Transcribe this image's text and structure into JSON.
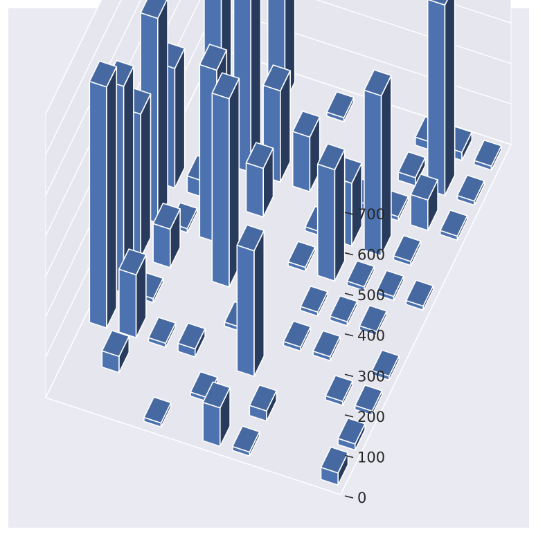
{
  "chart_data": {
    "type": "bar3d",
    "title": "",
    "xlabel": "",
    "ylabel": "",
    "zlabel": "",
    "zlim": [
      0,
      700
    ],
    "z_ticks": [
      "0",
      "100",
      "200",
      "300",
      "400",
      "500",
      "600",
      "700"
    ],
    "grid": true,
    "grid_size": [
      10,
      10
    ],
    "colors": {
      "bar": "#4c72b0",
      "figure_bg": "#ffffff",
      "axes_bg": "#eaeaf2",
      "pane": "#e6e6ee",
      "grid": "#ffffff",
      "tick_text": "#262626"
    },
    "bars": [
      {
        "x": 0,
        "y": 2,
        "z": 595
      },
      {
        "x": 0,
        "y": 3,
        "z": 510
      },
      {
        "x": 0,
        "y": 4,
        "z": 355
      },
      {
        "x": 0,
        "y": 5,
        "z": 505
      },
      {
        "x": 0,
        "y": 6,
        "z": 295
      },
      {
        "x": 1,
        "y": 1,
        "z": 40
      },
      {
        "x": 1,
        "y": 2,
        "z": 155
      },
      {
        "x": 1,
        "y": 3,
        "z": 10
      },
      {
        "x": 1,
        "y": 4,
        "z": 95
      },
      {
        "x": 1,
        "y": 5,
        "z": 10
      },
      {
        "x": 1,
        "y": 6,
        "z": 40
      },
      {
        "x": 1,
        "y": 7,
        "z": 620
      },
      {
        "x": 2,
        "y": 2,
        "z": 10
      },
      {
        "x": 2,
        "y": 5,
        "z": 425
      },
      {
        "x": 2,
        "y": 7,
        "z": 580
      },
      {
        "x": 2,
        "y": 9,
        "z": 645
      },
      {
        "x": 3,
        "y": 0,
        "z": 10
      },
      {
        "x": 3,
        "y": 2,
        "z": 20
      },
      {
        "x": 3,
        "y": 4,
        "z": 465
      },
      {
        "x": 3,
        "y": 6,
        "z": 120
      },
      {
        "x": 3,
        "y": 7,
        "z": 225
      },
      {
        "x": 4,
        "y": 1,
        "z": 10
      },
      {
        "x": 4,
        "y": 3,
        "z": 10
      },
      {
        "x": 4,
        "y": 7,
        "z": 135
      },
      {
        "x": 4,
        "y": 9,
        "z": 10
      },
      {
        "x": 5,
        "y": 0,
        "z": 95
      },
      {
        "x": 5,
        "y": 2,
        "z": 310
      },
      {
        "x": 5,
        "y": 5,
        "z": 10
      },
      {
        "x": 5,
        "y": 6,
        "z": 10
      },
      {
        "x": 5,
        "y": 7,
        "z": 10
      },
      {
        "x": 6,
        "y": 0,
        "z": 10
      },
      {
        "x": 6,
        "y": 1,
        "z": 25
      },
      {
        "x": 6,
        "y": 3,
        "z": 10
      },
      {
        "x": 6,
        "y": 4,
        "z": 10
      },
      {
        "x": 6,
        "y": 5,
        "z": 275
      },
      {
        "x": 6,
        "y": 6,
        "z": 155
      },
      {
        "x": 6,
        "y": 7,
        "z": 15
      },
      {
        "x": 7,
        "y": 3,
        "z": 10
      },
      {
        "x": 7,
        "y": 4,
        "z": 10
      },
      {
        "x": 7,
        "y": 5,
        "z": 10
      },
      {
        "x": 7,
        "y": 6,
        "z": 395
      },
      {
        "x": 7,
        "y": 7,
        "z": 10
      },
      {
        "x": 7,
        "y": 8,
        "z": 20
      },
      {
        "x": 7,
        "y": 9,
        "z": 20
      },
      {
        "x": 8,
        "y": 2,
        "z": 10
      },
      {
        "x": 8,
        "y": 4,
        "z": 10
      },
      {
        "x": 8,
        "y": 5,
        "z": 10
      },
      {
        "x": 8,
        "y": 6,
        "z": 10
      },
      {
        "x": 8,
        "y": 7,
        "z": 75
      },
      {
        "x": 8,
        "y": 8,
        "z": 470
      },
      {
        "x": 8,
        "y": 9,
        "z": 20
      },
      {
        "x": 9,
        "y": 0,
        "z": 30
      },
      {
        "x": 9,
        "y": 1,
        "z": 15
      },
      {
        "x": 9,
        "y": 2,
        "z": 10
      },
      {
        "x": 9,
        "y": 3,
        "z": 10
      },
      {
        "x": 9,
        "y": 5,
        "z": 10
      },
      {
        "x": 9,
        "y": 7,
        "z": 10
      },
      {
        "x": 9,
        "y": 8,
        "z": 10
      },
      {
        "x": 9,
        "y": 9,
        "z": 10
      }
    ]
  }
}
